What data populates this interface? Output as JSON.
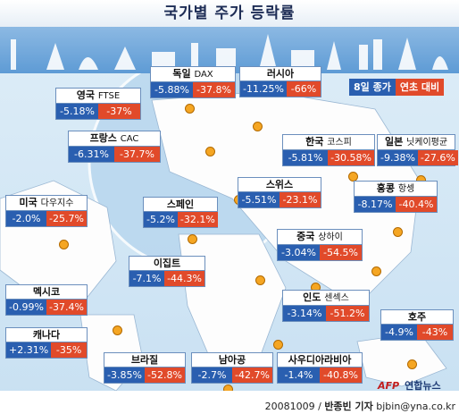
{
  "title": "국가별 주가 등락률",
  "legend": {
    "daily": "8일 종가",
    "yearly": "연초 대비"
  },
  "markets": {
    "germany": {
      "name": "독일",
      "index": "DAX",
      "daily": "-5.88%",
      "yearly": "-37.8%"
    },
    "russia": {
      "name": "러시아",
      "index": "",
      "daily": "-11.25%",
      "yearly": "-66%"
    },
    "uk": {
      "name": "영국",
      "index": "FTSE",
      "daily": "-5.18%",
      "yearly": "-37%"
    },
    "france": {
      "name": "프랑스",
      "index": "CAC",
      "daily": "-6.31%",
      "yearly": "-37.7%"
    },
    "korea": {
      "name": "한국",
      "index": "코스피",
      "daily": "-5.81%",
      "yearly": "-30.58%"
    },
    "japan": {
      "name": "일본",
      "index": "닛케이평균",
      "daily": "-9.38%",
      "yearly": "-27.6%"
    },
    "usa": {
      "name": "미국",
      "index": "다우지수",
      "daily": "-2.0%",
      "yearly": "-25.7%"
    },
    "spain": {
      "name": "스페인",
      "index": "",
      "daily": "-5.2%",
      "yearly": "-32.1%"
    },
    "swiss": {
      "name": "스위스",
      "index": "",
      "daily": "-5.51%",
      "yearly": "-23.1%"
    },
    "hongkong": {
      "name": "홍콩",
      "index": "항셍",
      "daily": "-8.17%",
      "yearly": "-40.4%"
    },
    "china": {
      "name": "중국",
      "index": "상하이",
      "daily": "-3.04%",
      "yearly": "-54.5%"
    },
    "egypt": {
      "name": "이집트",
      "index": "",
      "daily": "-7.1%",
      "yearly": "-44.3%"
    },
    "mexico": {
      "name": "멕시코",
      "index": "",
      "daily": "-0.99%",
      "yearly": "-37.4%"
    },
    "india": {
      "name": "인도",
      "index": "센섹스",
      "daily": "-3.14%",
      "yearly": "-51.2%"
    },
    "australia": {
      "name": "호주",
      "index": "",
      "daily": "-4.9%",
      "yearly": "-43%"
    },
    "canada": {
      "name": "캐나다",
      "index": "",
      "daily": "+2.31%",
      "yearly": "-35%"
    },
    "brazil": {
      "name": "브라질",
      "index": "",
      "daily": "-3.85%",
      "yearly": "-52.8%"
    },
    "southafrica": {
      "name": "남아공",
      "index": "",
      "daily": "-2.7%",
      "yearly": "-42.7%"
    },
    "saudi": {
      "name": "사우디아라비아",
      "index": "",
      "daily": "-1.4%",
      "yearly": "-40.8%"
    }
  },
  "footer": {
    "date": "20081009",
    "reporter": "반종빈 기자",
    "email": "bjbin@yna.co.kr"
  },
  "agency": {
    "afp": "AFP",
    "yonhap": "연합뉴스"
  },
  "colors": {
    "daily": "#2a5fb0",
    "yearly": "#e14a2a",
    "land": "#fdfdfd",
    "sea": "#c8e0f2"
  }
}
